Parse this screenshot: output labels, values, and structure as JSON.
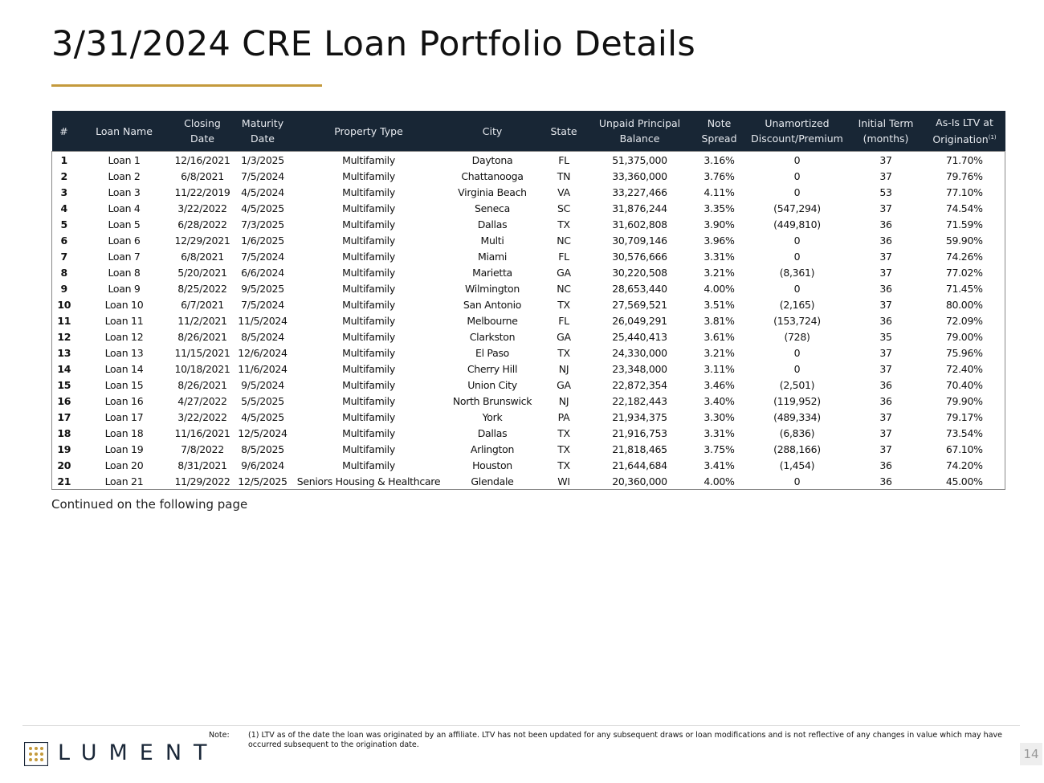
{
  "header": {
    "title": "3/31/2024 CRE Loan Portfolio Details"
  },
  "table": {
    "columns": [
      "#",
      "Loan Name",
      "Closing Date",
      "Maturity Date",
      "Property Type",
      "City",
      "State",
      "Unpaid Principal Balance",
      "Note Spread",
      "Unamortized Discount/Premium",
      "Initial Term (months)",
      {
        "text": "As-Is LTV at Origination",
        "sup": "(1)"
      }
    ],
    "rows": [
      [
        "1",
        "Loan 1",
        "12/16/2021",
        "1/3/2025",
        "Multifamily",
        "Daytona",
        "FL",
        "51,375,000",
        "3.16%",
        "0",
        "37",
        "71.70%"
      ],
      [
        "2",
        "Loan 2",
        "6/8/2021",
        "7/5/2024",
        "Multifamily",
        "Chattanooga",
        "TN",
        "33,360,000",
        "3.76%",
        "0",
        "37",
        "79.76%"
      ],
      [
        "3",
        "Loan 3",
        "11/22/2019",
        "4/5/2024",
        "Multifamily",
        "Virginia Beach",
        "VA",
        "33,227,466",
        "4.11%",
        "0",
        "53",
        "77.10%"
      ],
      [
        "4",
        "Loan 4",
        "3/22/2022",
        "4/5/2025",
        "Multifamily",
        "Seneca",
        "SC",
        "31,876,244",
        "3.35%",
        "(547,294)",
        "37",
        "74.54%"
      ],
      [
        "5",
        "Loan 5",
        "6/28/2022",
        "7/3/2025",
        "Multifamily",
        "Dallas",
        "TX",
        "31,602,808",
        "3.90%",
        "(449,810)",
        "36",
        "71.59%"
      ],
      [
        "6",
        "Loan 6",
        "12/29/2021",
        "1/6/2025",
        "Multifamily",
        "Multi",
        "NC",
        "30,709,146",
        "3.96%",
        "0",
        "36",
        "59.90%"
      ],
      [
        "7",
        "Loan 7",
        "6/8/2021",
        "7/5/2024",
        "Multifamily",
        "Miami",
        "FL",
        "30,576,666",
        "3.31%",
        "0",
        "37",
        "74.26%"
      ],
      [
        "8",
        "Loan 8",
        "5/20/2021",
        "6/6/2024",
        "Multifamily",
        "Marietta",
        "GA",
        "30,220,508",
        "3.21%",
        "(8,361)",
        "37",
        "77.02%"
      ],
      [
        "9",
        "Loan 9",
        "8/25/2022",
        "9/5/2025",
        "Multifamily",
        "Wilmington",
        "NC",
        "28,653,440",
        "4.00%",
        "0",
        "36",
        "71.45%"
      ],
      [
        "10",
        "Loan 10",
        "6/7/2021",
        "7/5/2024",
        "Multifamily",
        "San Antonio",
        "TX",
        "27,569,521",
        "3.51%",
        "(2,165)",
        "37",
        "80.00%"
      ],
      [
        "11",
        "Loan 11",
        "11/2/2021",
        "11/5/2024",
        "Multifamily",
        "Melbourne",
        "FL",
        "26,049,291",
        "3.81%",
        "(153,724)",
        "36",
        "72.09%"
      ],
      [
        "12",
        "Loan 12",
        "8/26/2021",
        "8/5/2024",
        "Multifamily",
        "Clarkston",
        "GA",
        "25,440,413",
        "3.61%",
        "(728)",
        "35",
        "79.00%"
      ],
      [
        "13",
        "Loan 13",
        "11/15/2021",
        "12/6/2024",
        "Multifamily",
        "El Paso",
        "TX",
        "24,330,000",
        "3.21%",
        "0",
        "37",
        "75.96%"
      ],
      [
        "14",
        "Loan 14",
        "10/18/2021",
        "11/6/2024",
        "Multifamily",
        "Cherry Hill",
        "NJ",
        "23,348,000",
        "3.11%",
        "0",
        "37",
        "72.40%"
      ],
      [
        "15",
        "Loan 15",
        "8/26/2021",
        "9/5/2024",
        "Multifamily",
        "Union City",
        "GA",
        "22,872,354",
        "3.46%",
        "(2,501)",
        "36",
        "70.40%"
      ],
      [
        "16",
        "Loan 16",
        "4/27/2022",
        "5/5/2025",
        "Multifamily",
        "North Brunswick",
        "NJ",
        "22,182,443",
        "3.40%",
        "(119,952)",
        "36",
        "79.90%"
      ],
      [
        "17",
        "Loan 17",
        "3/22/2022",
        "4/5/2025",
        "Multifamily",
        "York",
        "PA",
        "21,934,375",
        "3.30%",
        "(489,334)",
        "37",
        "79.17%"
      ],
      [
        "18",
        "Loan 18",
        "11/16/2021",
        "12/5/2024",
        "Multifamily",
        "Dallas",
        "TX",
        "21,916,753",
        "3.31%",
        "(6,836)",
        "37",
        "73.54%"
      ],
      [
        "19",
        "Loan 19",
        "7/8/2022",
        "8/5/2025",
        "Multifamily",
        "Arlington",
        "TX",
        "21,818,465",
        "3.75%",
        "(288,166)",
        "37",
        "67.10%"
      ],
      [
        "20",
        "Loan 20",
        "8/31/2021",
        "9/6/2024",
        "Multifamily",
        "Houston",
        "TX",
        "21,644,684",
        "3.41%",
        "(1,454)",
        "36",
        "74.20%"
      ],
      [
        "21",
        "Loan 21",
        "11/29/2022",
        "12/5/2025",
        "Seniors Housing & Healthcare",
        "Glendale",
        "WI",
        "20,360,000",
        "4.00%",
        "0",
        "36",
        "45.00%"
      ]
    ]
  },
  "continued": "Continued on the following page",
  "footer": {
    "note_label": "Note:",
    "note": "(1) LTV as of the date the loan was originated by an affiliate. LTV has not been updated for any subsequent draws or loan modifications and is not reflective of any changes in value which may have occurred subsequent to the origination date.",
    "logo": "LUMENT",
    "page": "14"
  }
}
